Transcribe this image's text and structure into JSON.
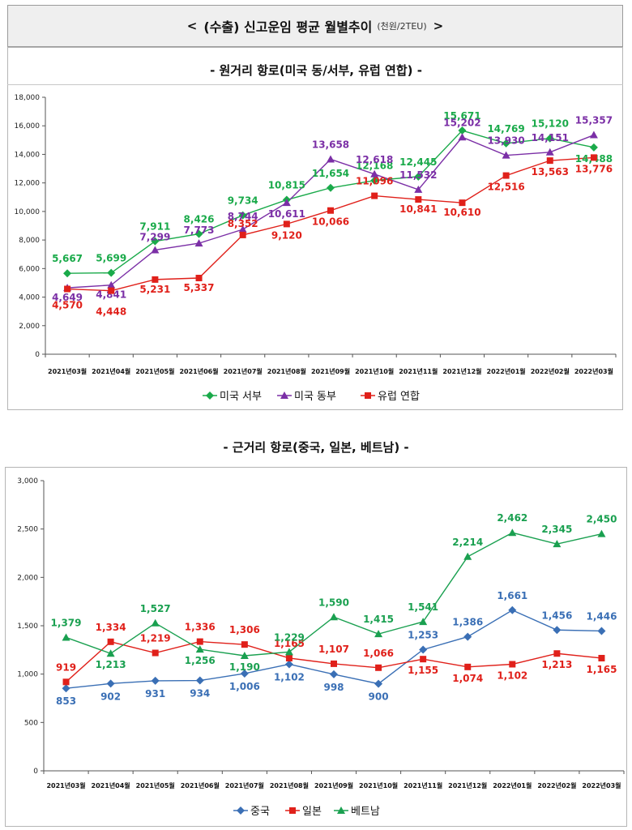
{
  "header": {
    "left_arrow": "<",
    "title": "(수출) 신고운임 평균 월별추이",
    "unit": "(천원/2TEU)",
    "right_arrow": ">"
  },
  "chart_data": [
    {
      "type": "line",
      "title": "- 원거리 항로(미국 동/서부, 유럽 연합) -",
      "categories": [
        "2021년03월",
        "2021년04월",
        "2021년05월",
        "2021년06월",
        "2021년07월",
        "2021년08월",
        "2021년09월",
        "2021년10월",
        "2021년11월",
        "2021년12월",
        "2022년01월",
        "2022년02월",
        "2022년03월"
      ],
      "ylim": [
        0,
        18000
      ],
      "yticks": [
        0,
        2000,
        4000,
        6000,
        8000,
        10000,
        12000,
        14000,
        16000,
        18000
      ],
      "grid": false,
      "legend": "bottom",
      "series": [
        {
          "name": "미국 서부",
          "color": "#1aaa4a",
          "marker": "diamond",
          "values": [
            5667,
            5699,
            7911,
            8426,
            9734,
            10815,
            11654,
            12168,
            12445,
            15671,
            14769,
            15120,
            14488
          ]
        },
        {
          "name": "미국 동부",
          "color": "#7b2fa6",
          "marker": "triangle",
          "values": [
            4649,
            4841,
            7299,
            7773,
            8744,
            10611,
            13658,
            12618,
            11532,
            15202,
            13930,
            14151,
            15357
          ]
        },
        {
          "name": "유럽 연합",
          "color": "#e0201a",
          "marker": "square",
          "values": [
            4570,
            4448,
            5231,
            5337,
            8352,
            9120,
            10066,
            11096,
            10841,
            10610,
            12516,
            13563,
            13776
          ]
        }
      ]
    },
    {
      "type": "line",
      "title": "- 근거리 항로(중국, 일본, 베트남) -",
      "categories": [
        "2021년03월",
        "2021년04월",
        "2021년05월",
        "2021년06월",
        "2021년07월",
        "2021년08월",
        "2021년09월",
        "2021년10월",
        "2021년11월",
        "2021년12월",
        "2022년01월",
        "2022년02월",
        "2022년03월"
      ],
      "ylim": [
        0,
        3000
      ],
      "yticks": [
        0,
        500,
        1000,
        1500,
        2000,
        2500,
        3000
      ],
      "grid": false,
      "legend": "bottom",
      "series": [
        {
          "name": "중국",
          "color": "#3a6fb5",
          "marker": "diamond",
          "values": [
            853,
            902,
            931,
            934,
            1006,
            1102,
            998,
            900,
            1253,
            1386,
            1661,
            1456,
            1446
          ]
        },
        {
          "name": "일본",
          "color": "#e0201a",
          "marker": "square",
          "values": [
            919,
            1334,
            1219,
            1336,
            1306,
            1165,
            1107,
            1066,
            1155,
            1074,
            1102,
            1213,
            1165
          ]
        },
        {
          "name": "베트남",
          "color": "#1aa050",
          "marker": "triangle",
          "values": [
            1379,
            1213,
            1527,
            1256,
            1190,
            1229,
            1590,
            1415,
            1541,
            2214,
            2462,
            2345,
            2450
          ]
        }
      ]
    }
  ]
}
